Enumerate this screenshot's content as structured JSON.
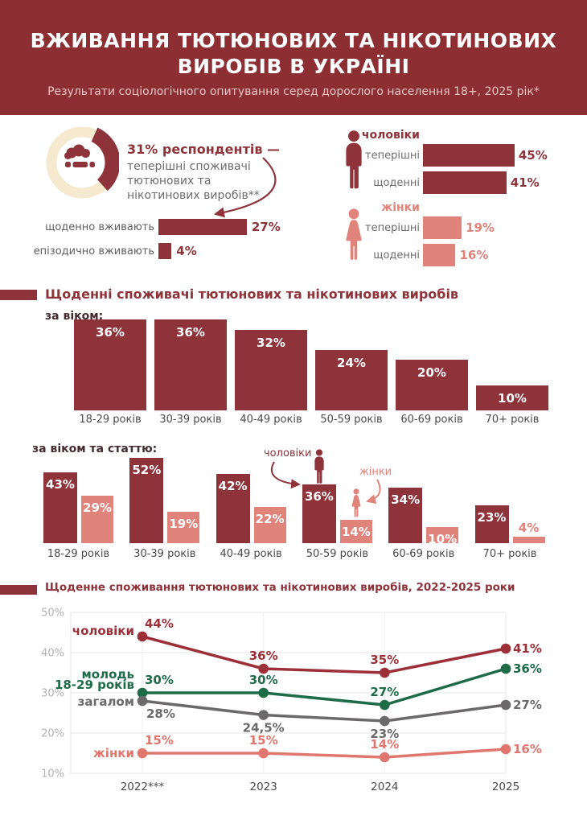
{
  "colors": {
    "header_bg": "#8D2E33",
    "primary_red": "#8E333A",
    "line_red": "#9C2F38",
    "salmon": "#E0837B",
    "salmon_line": "#E0776F",
    "green": "#1E6B47",
    "gray_line": "#6B6969",
    "text_gray": "#6C6C6F",
    "dark_label": "#452B2E",
    "axis_label": "#4A4A4C",
    "ytick_gray": "#B3B1B1",
    "cream": "#F5EAD0",
    "subtitle_pink": "#E9C7C5"
  },
  "header": {
    "title_line1": "ВЖИВАННЯ ТЮТЮНОВИХ ТА НІКОТИНОВИХ",
    "title_line2": "ВИРОБІВ В УКРАЇНІ",
    "subtitle": "Результати соціологічного опитування серед дорослого населення 18+, 2025 рік*"
  },
  "overview": {
    "donut_percent": 31,
    "headline": "31% респондентів —",
    "description_lines": [
      "теперішні споживачі",
      "тютюнових та",
      "нікотинових виробів**"
    ],
    "bars": [
      {
        "label": "щоденно вживають",
        "value": 27,
        "value_label": "27%"
      },
      {
        "label": "епізодично вживають",
        "value": 4,
        "value_label": "4%"
      }
    ]
  },
  "by_gender": {
    "men": {
      "title": "чоловіки",
      "rows": [
        {
          "label": "теперішні",
          "value": 45,
          "value_label": "45%"
        },
        {
          "label": "щоденні",
          "value": 41,
          "value_label": "41%"
        }
      ]
    },
    "women": {
      "title": "жінки",
      "rows": [
        {
          "label": "теперішні",
          "value": 19,
          "value_label": "19%"
        },
        {
          "label": "щоденні",
          "value": 16,
          "value_label": "16%"
        }
      ]
    }
  },
  "sections": {
    "daily_title": "Щоденні споживачі тютюнових та нікотинових виробів",
    "by_age_label": "за віком:",
    "by_age_sex_label": "за віком та статтю:",
    "trend_title": "Щоденне споживання тютюнових та нікотинових виробів, 2022-2025 роки"
  },
  "annotations": {
    "men": "чоловіки",
    "women": "жінки"
  },
  "chart_data": [
    {
      "type": "bar",
      "name": "daily_users_by_age",
      "title": "за віком:",
      "categories": [
        "18-29 років",
        "30-39 років",
        "40-49 років",
        "50-59 років",
        "60-69 років",
        "70+ років"
      ],
      "values": [
        36,
        36,
        32,
        24,
        20,
        10
      ],
      "unit": "%"
    },
    {
      "type": "bar",
      "name": "daily_users_by_age_and_sex",
      "title": "за віком та статтю:",
      "categories": [
        "18-29 років",
        "30-39 років",
        "40-49 років",
        "50-59 років",
        "60-69 років",
        "70+ років"
      ],
      "series": [
        {
          "name": "чоловіки",
          "values": [
            43,
            52,
            42,
            36,
            34,
            23
          ]
        },
        {
          "name": "жінки",
          "values": [
            29,
            19,
            22,
            14,
            10,
            4
          ]
        }
      ],
      "unit": "%"
    },
    {
      "type": "line",
      "name": "daily_use_trend_2022_2025",
      "title": "Щоденне споживання тютюнових та нікотинових виробів, 2022-2025 роки",
      "x": [
        "2022***",
        "2023",
        "2024",
        "2025"
      ],
      "ylim": [
        10,
        50
      ],
      "yticks": [
        50,
        40,
        30,
        20,
        10
      ],
      "grid": true,
      "series": [
        {
          "name": "чоловіки",
          "values": [
            44,
            36,
            35,
            41
          ],
          "color": "#9C2F38"
        },
        {
          "name": "молодь 18-29 років",
          "name_lines": [
            "молодь",
            "18-29 років"
          ],
          "values": [
            30,
            30,
            27,
            36
          ],
          "color": "#1E6B47"
        },
        {
          "name": "загалом",
          "values": [
            28,
            24.5,
            23,
            27
          ],
          "labels": [
            "28%",
            "24,5%",
            "23%",
            "27%"
          ],
          "color": "#6B6969"
        },
        {
          "name": "жінки",
          "values": [
            15,
            15,
            14,
            16
          ],
          "color": "#E0776F"
        }
      ]
    }
  ]
}
